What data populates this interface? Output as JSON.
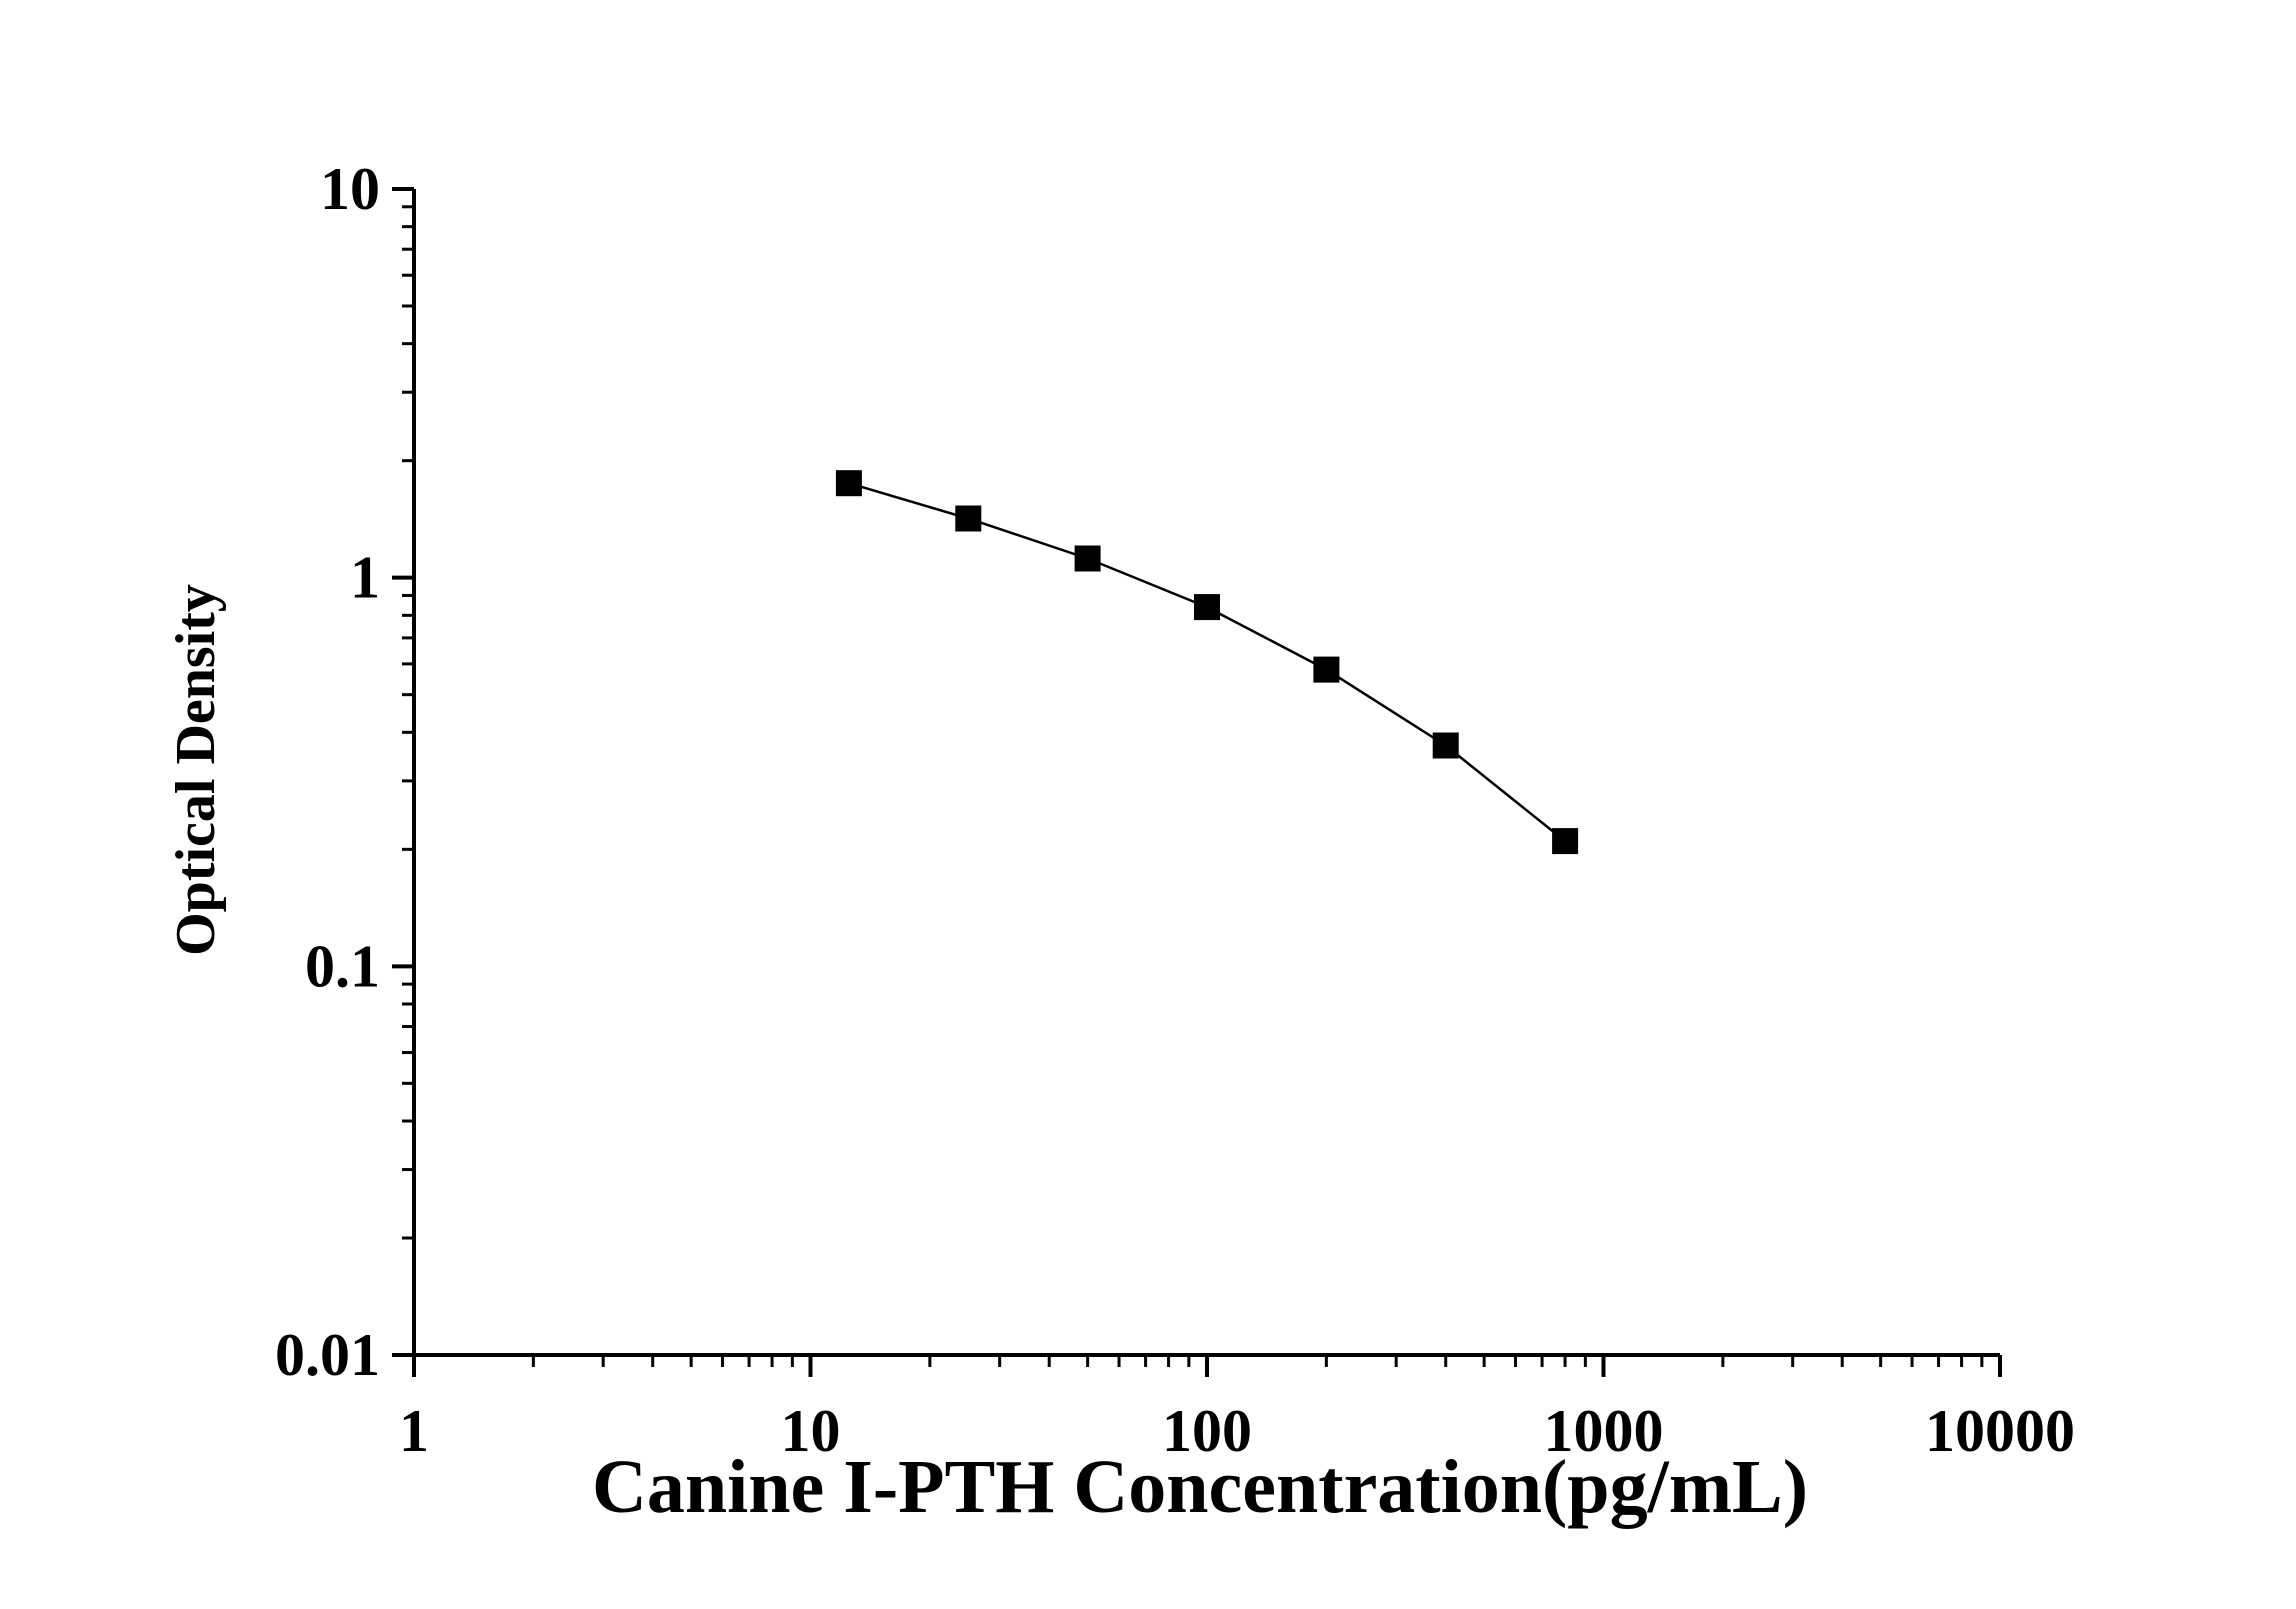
{
  "chart_data": {
    "type": "line",
    "xlabel": "Canine I-PTH Concentration(pg/mL)",
    "ylabel": "Optical Density",
    "x_scale": "log",
    "y_scale": "log",
    "xlim": [
      1,
      10000
    ],
    "ylim": [
      0.01,
      10
    ],
    "x_ticks": [
      {
        "value": 1,
        "label": "1"
      },
      {
        "value": 10,
        "label": "10"
      },
      {
        "value": 100,
        "label": "100"
      },
      {
        "value": 1000,
        "label": "1000"
      },
      {
        "value": 10000,
        "label": "10000"
      }
    ],
    "y_ticks": [
      {
        "value": 0.01,
        "label": "0.01"
      },
      {
        "value": 0.1,
        "label": "0.1"
      },
      {
        "value": 1,
        "label": "1"
      },
      {
        "value": 10,
        "label": "10"
      }
    ],
    "grid": false,
    "marker": "square",
    "line_color": "#000000",
    "marker_color": "#000000",
    "series": [
      {
        "x": [
          12.5,
          25,
          50,
          100,
          200,
          400,
          800
        ],
        "y": [
          1.75,
          1.42,
          1.12,
          0.84,
          0.58,
          0.37,
          0.21
        ]
      }
    ]
  }
}
